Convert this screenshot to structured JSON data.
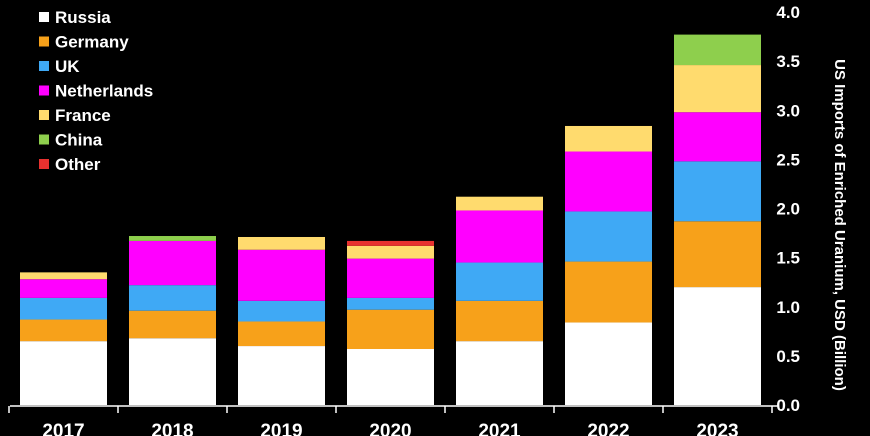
{
  "chart_data": {
    "type": "bar",
    "stacked": true,
    "title": "",
    "ylabel": "US Imports of Enriched Uranium, USD (Billion)",
    "xlabel": "",
    "ylim": [
      0,
      4.0
    ],
    "yticks": [
      "0.0",
      "0.5",
      "1.0",
      "1.5",
      "2.0",
      "2.5",
      "3.0",
      "3.5",
      "4.0"
    ],
    "categories": [
      "2017",
      "2018",
      "2019",
      "2020",
      "2021",
      "2022",
      "2023"
    ],
    "legend_position": "top-left",
    "grid": false,
    "series": [
      {
        "name": "Russia",
        "color": "#ffffff",
        "values": [
          0.65,
          0.68,
          0.6,
          0.57,
          0.65,
          0.84,
          1.2
        ]
      },
      {
        "name": "Germany",
        "color": "#f7a11a",
        "values": [
          0.22,
          0.28,
          0.25,
          0.4,
          0.41,
          0.62,
          0.67
        ]
      },
      {
        "name": "UK",
        "color": "#3fa9f5",
        "values": [
          0.22,
          0.26,
          0.21,
          0.12,
          0.39,
          0.51,
          0.61
        ]
      },
      {
        "name": "Netherlands",
        "color": "#ff00ff",
        "values": [
          0.19,
          0.45,
          0.52,
          0.4,
          0.53,
          0.61,
          0.5
        ]
      },
      {
        "name": "France",
        "color": "#ffdb6e",
        "values": [
          0.07,
          0.0,
          0.13,
          0.13,
          0.14,
          0.26,
          0.48
        ]
      },
      {
        "name": "China",
        "color": "#8ecf4d",
        "values": [
          0.0,
          0.05,
          0.0,
          0.0,
          0.0,
          0.0,
          0.31
        ]
      },
      {
        "name": "Other",
        "color": "#e8312f",
        "values": [
          0.0,
          0.0,
          0.0,
          0.05,
          0.0,
          0.0,
          0.0
        ]
      }
    ]
  }
}
